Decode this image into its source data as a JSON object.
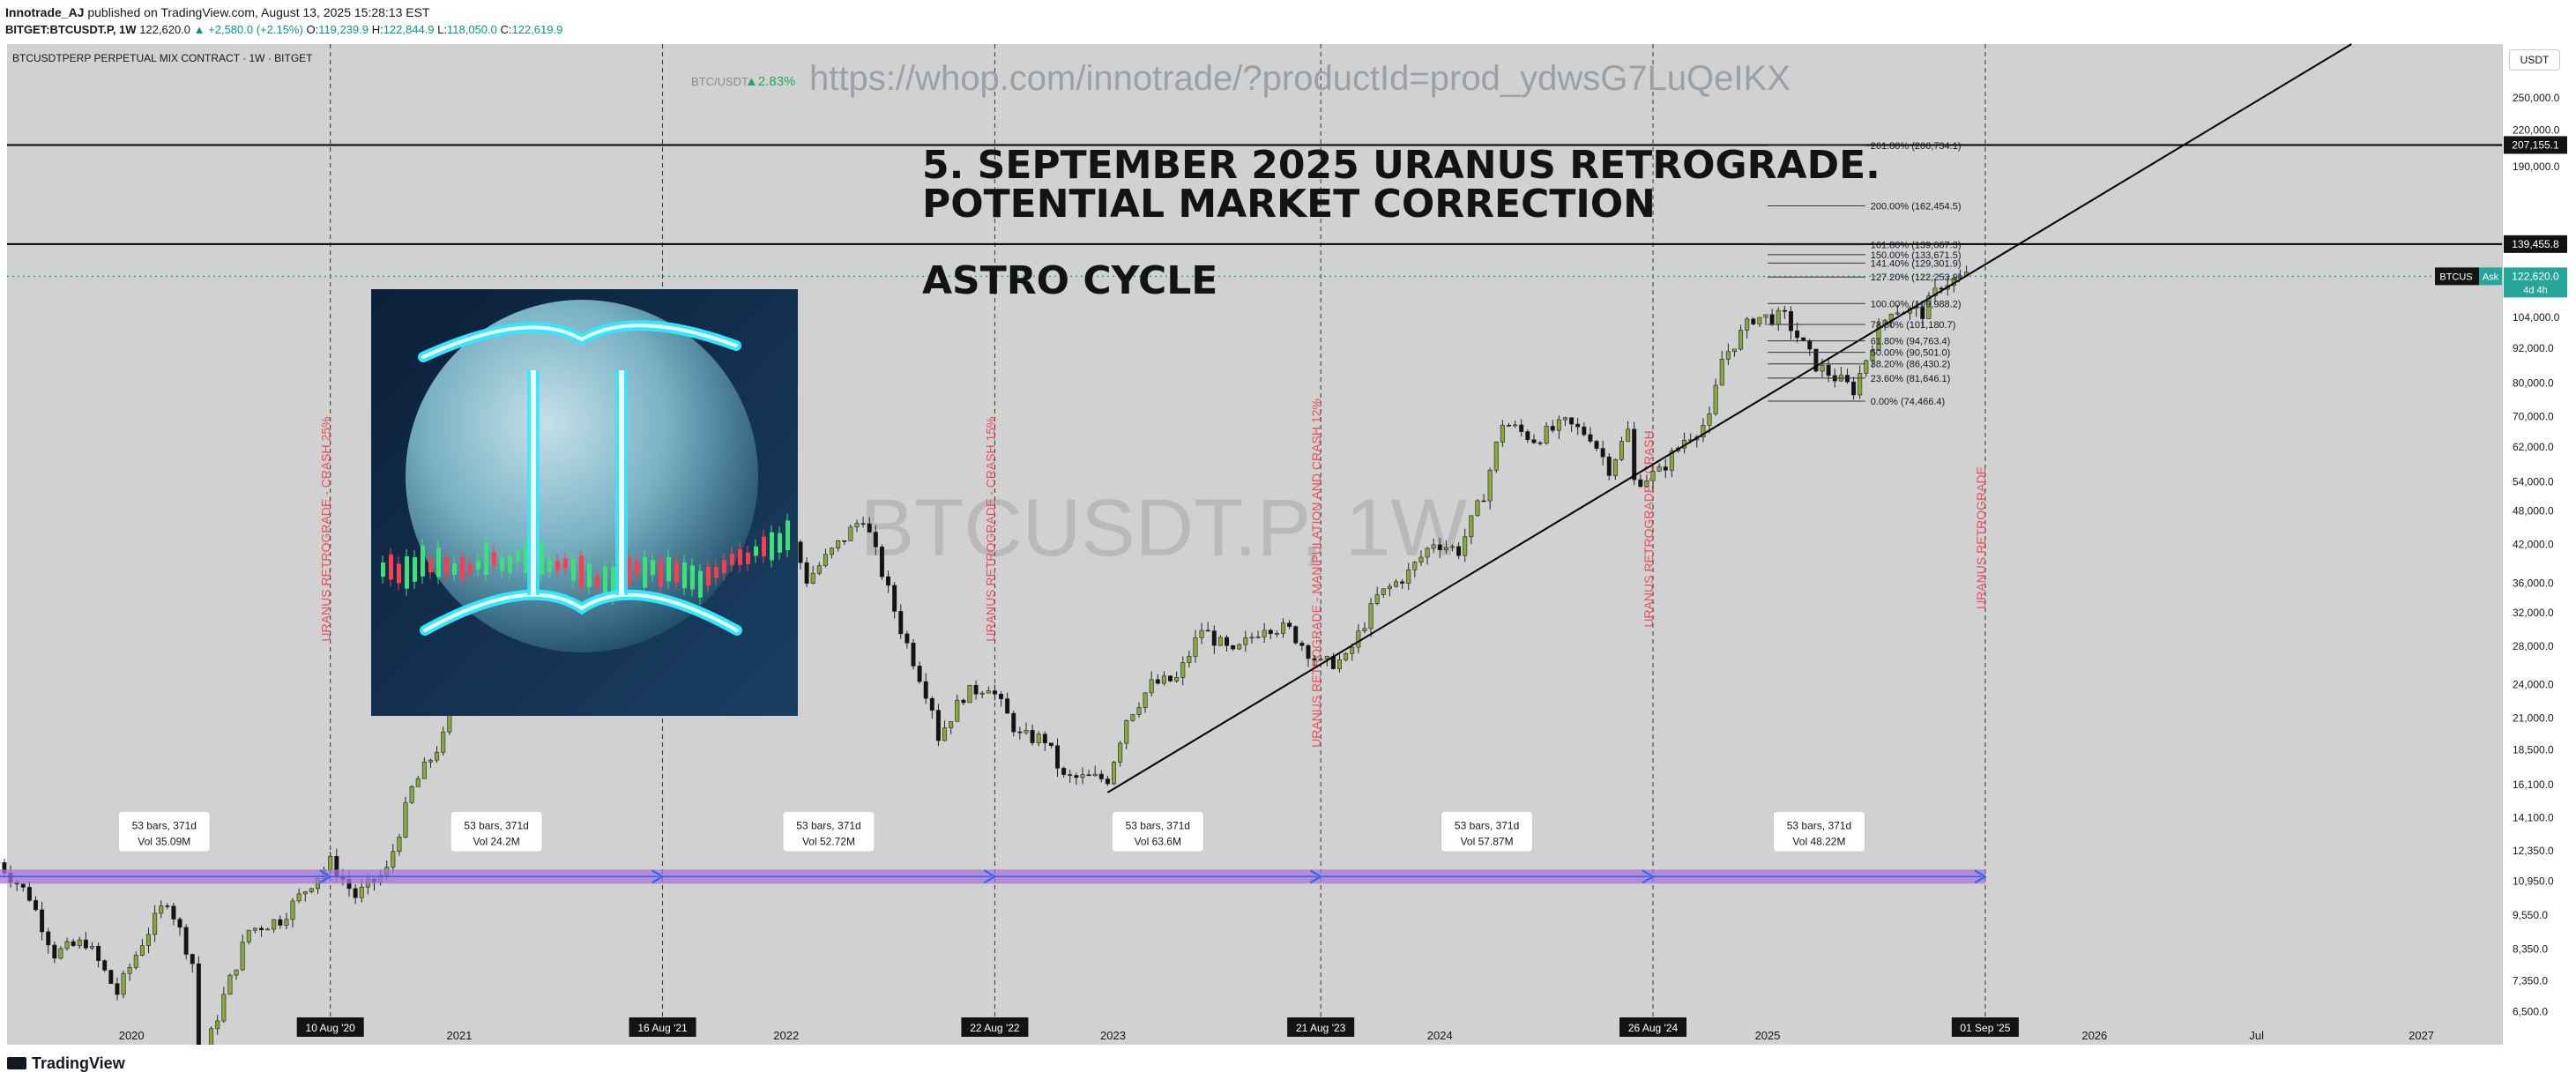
{
  "header": {
    "author": "Innotrade_AJ",
    "published": "published on TradingView.com, August 13, 2025 15:28:13 EST",
    "ticker": "BITGET:BTCUSDT.P, 1W",
    "last": "122,620.0",
    "change": "▲ +2,580.0 (+2.15%)",
    "o_label": "O:",
    "o": "119,239.9",
    "h_label": "H:",
    "h": "122,844.9",
    "l_label": "L:",
    "l": "118,050.0",
    "c_label": "C:",
    "c": "122,619.9"
  },
  "symbol_line": "BTCUSDTPERP PERPETUAL MIX CONTRACT · 1W · BITGET",
  "mini_ticker": {
    "name": "BTC/USDT",
    "change": "▲2.83%"
  },
  "url_text": "https://whop.com/innotrade/?productId=prod_ydwsG7LuQeIKX",
  "watermark": "BTCUSDT.P, 1W",
  "headline_1": "5. SEPTEMBER 2025 URANUS RETROGRADE.",
  "headline_2": "POTENTIAL MARKET CORRECTION",
  "headline_3": "ASTRO CYCLE",
  "currency_button": "USDT",
  "footer_brand": "TradingView",
  "colors": {
    "bg": "#d1d1d1",
    "up": "#89a83c",
    "down": "#131313",
    "cycle_label": "#e8505b",
    "range_bar": "#a874d6",
    "range_arrow": "#2962ff"
  },
  "chart_data": {
    "type": "candlestick",
    "scale": "log",
    "ylim": [
      5900,
      310000
    ],
    "xrange": [
      "2019-08-15",
      "2027-04-01"
    ],
    "y_ticks": [
      "250,000.0",
      "220,000.0",
      "190,000.0",
      "104,000.0",
      "92,000.0",
      "80,000.0",
      "70,000.0",
      "62,000.0",
      "54,000.0",
      "48,000.0",
      "42,000.0",
      "36,000.0",
      "32,000.0",
      "28,000.0",
      "24,000.0",
      "21,000.0",
      "18,500.0",
      "16,100.0",
      "14,100.0",
      "12,350.0",
      "10,950.0",
      "9,550.0",
      "8,350.0",
      "7,350.0",
      "6,500.0"
    ],
    "y_tick_values": [
      250000,
      220000,
      190000,
      104000,
      92000,
      80000,
      70000,
      62000,
      54000,
      48000,
      42000,
      36000,
      32000,
      28000,
      24000,
      21000,
      18500,
      16100,
      14100,
      12350,
      10950,
      9550,
      8350,
      7350,
      6500
    ],
    "x_ticks": [
      {
        "label": "2020",
        "date": "2020-01-01"
      },
      {
        "label": "2021",
        "date": "2021-01-01"
      },
      {
        "label": "2022",
        "date": "2022-01-01"
      },
      {
        "label": "2023",
        "date": "2023-01-01"
      },
      {
        "label": "2024",
        "date": "2024-01-01"
      },
      {
        "label": "2025",
        "date": "2025-01-01"
      },
      {
        "label": "2026",
        "date": "2026-01-01"
      },
      {
        "label": "Jul",
        "date": "2026-07-01"
      },
      {
        "label": "2027",
        "date": "2027-01-01"
      }
    ],
    "cycle_dates": [
      {
        "label": "10 Aug '20",
        "date": "2020-08-10",
        "note": "URANUS RETROGRADE - CRASH 25%"
      },
      {
        "label": "16 Aug '21",
        "date": "2021-08-16",
        "note": "URANUS RETROGRADE - CRASH 25%"
      },
      {
        "label": "22 Aug '22",
        "date": "2022-08-22",
        "note": "URANUS RETROGRADE - CRASH 15%"
      },
      {
        "label": "21 Aug '23",
        "date": "2023-08-21",
        "note": "URANUS RETROGRADE - MANIPULATION AND CRASH 12%"
      },
      {
        "label": "26 Aug '24",
        "date": "2024-08-26",
        "note": "URANUS RETROGRADE - CRASH"
      },
      {
        "label": "01 Sep '25",
        "date": "2025-09-01",
        "note": "URANUS RETROGRADE"
      }
    ],
    "ranges": [
      {
        "l1": "53 bars, 371d",
        "l2": "Vol 35.09M",
        "start": "2019-08-05",
        "end": "2020-08-10"
      },
      {
        "l1": "53 bars, 371d",
        "l2": "Vol 24.2M",
        "start": "2020-08-10",
        "end": "2021-08-16"
      },
      {
        "l1": "53 bars, 371d",
        "l2": "Vol 52.72M",
        "start": "2021-08-16",
        "end": "2022-08-22"
      },
      {
        "l1": "53 bars, 371d",
        "l2": "Vol 63.6M",
        "start": "2022-08-22",
        "end": "2023-08-21"
      },
      {
        "l1": "53 bars, 371d",
        "l2": "Vol 57.87M",
        "start": "2023-08-21",
        "end": "2024-08-26"
      },
      {
        "l1": "53 bars, 371d",
        "l2": "Vol 48.22M",
        "start": "2024-08-26",
        "end": "2025-09-01"
      }
    ],
    "horizontal_levels": [
      {
        "value": 207155.1,
        "label": "207,155.1"
      },
      {
        "value": 139455.8,
        "label": "139,455.8"
      }
    ],
    "current_price": {
      "value": 122620.0,
      "label": "122,620.0",
      "tag": "BTCUS",
      "ask": "Ask",
      "countdown": "4d 4h"
    },
    "fib_levels": [
      {
        "value": 206734.1,
        "label": "261.80% (206,734.1)"
      },
      {
        "value": 162454.5,
        "label": "200.00% (162,454.5)"
      },
      {
        "value": 139067.3,
        "label": "161.80% (139,067.3)"
      },
      {
        "value": 133671.5,
        "label": "150.00% (133,671.5)"
      },
      {
        "value": 129301.9,
        "label": "141.40% (129,301.9)"
      },
      {
        "value": 122253.9,
        "label": "127.20% (122,253.9)"
      },
      {
        "value": 109988.2,
        "label": "100.00% (109,988.2)"
      },
      {
        "value": 101180.7,
        "label": "78.60% (101,180.7)"
      },
      {
        "value": 94763.4,
        "label": "61.80% (94,763.4)"
      },
      {
        "value": 90501.0,
        "label": "50.00% (90,501.0)"
      },
      {
        "value": 86430.2,
        "label": "38.20% (86,430.2)"
      },
      {
        "value": 81646.1,
        "label": "23.60% (81,646.1)"
      },
      {
        "value": 74466.4,
        "label": "0.00% (74,466.4)"
      }
    ],
    "trendline": [
      {
        "date": "2022-12-26",
        "value": 15600
      },
      {
        "date": "2026-10-15",
        "value": 310000
      }
    ],
    "price_path": [
      [
        "2019-08-05",
        11800
      ],
      [
        "2019-09-09",
        10300
      ],
      [
        "2019-10-07",
        8200
      ],
      [
        "2019-11-11",
        8600
      ],
      [
        "2019-12-16",
        7000
      ],
      [
        "2020-01-13",
        8600
      ],
      [
        "2020-02-10",
        10200
      ],
      [
        "2020-03-09",
        7900
      ],
      [
        "2020-03-16",
        5100
      ],
      [
        "2020-04-13",
        6900
      ],
      [
        "2020-05-11",
        9000
      ],
      [
        "2020-06-15",
        9400
      ],
      [
        "2020-07-20",
        10900
      ],
      [
        "2020-08-10",
        11800
      ],
      [
        "2020-09-07",
        10300
      ],
      [
        "2020-10-12",
        11400
      ],
      [
        "2020-11-09",
        15800
      ],
      [
        "2020-12-14",
        19400
      ],
      [
        "2021-01-11",
        35000
      ],
      [
        "2021-02-15",
        48000
      ],
      [
        "2021-03-15",
        59000
      ],
      [
        "2021-04-12",
        63000
      ],
      [
        "2021-05-10",
        50000
      ],
      [
        "2021-05-24",
        35000
      ],
      [
        "2021-06-21",
        31000
      ],
      [
        "2021-07-19",
        31500
      ],
      [
        "2021-08-16",
        46000
      ],
      [
        "2021-09-20",
        43000
      ],
      [
        "2021-10-18",
        62000
      ],
      [
        "2021-11-08",
        67000
      ],
      [
        "2021-12-06",
        50000
      ],
      [
        "2022-01-10",
        42000
      ],
      [
        "2022-01-24",
        36500
      ],
      [
        "2022-03-28",
        47000
      ],
      [
        "2022-05-09",
        30000
      ],
      [
        "2022-06-13",
        22000
      ],
      [
        "2022-06-20",
        19500
      ],
      [
        "2022-07-18",
        23000
      ],
      [
        "2022-08-15",
        24000
      ],
      [
        "2022-09-19",
        19500
      ],
      [
        "2022-10-17",
        19300
      ],
      [
        "2022-11-07",
        16500
      ],
      [
        "2022-12-26",
        16500
      ],
      [
        "2023-01-16",
        21000
      ],
      [
        "2023-02-13",
        24000
      ],
      [
        "2023-03-13",
        24500
      ],
      [
        "2023-04-10",
        30000
      ],
      [
        "2023-05-15",
        27000
      ],
      [
        "2023-06-19",
        30500
      ],
      [
        "2023-07-17",
        29800
      ],
      [
        "2023-08-21",
        26000
      ],
      [
        "2023-09-18",
        26500
      ],
      [
        "2023-10-23",
        34000
      ],
      [
        "2023-11-27",
        37500
      ],
      [
        "2023-12-25",
        42500
      ],
      [
        "2024-01-22",
        41000
      ],
      [
        "2024-02-19",
        51500
      ],
      [
        "2024-03-11",
        68500
      ],
      [
        "2024-04-15",
        64000
      ],
      [
        "2024-05-20",
        68000
      ],
      [
        "2024-06-17",
        65000
      ],
      [
        "2024-07-08",
        57000
      ],
      [
        "2024-07-29",
        66000
      ],
      [
        "2024-08-05",
        54000
      ],
      [
        "2024-09-02",
        56000
      ],
      [
        "2024-09-30",
        64000
      ],
      [
        "2024-10-28",
        69000
      ],
      [
        "2024-11-11",
        88000
      ],
      [
        "2024-12-16",
        104000
      ],
      [
        "2025-01-20",
        104000
      ],
      [
        "2025-02-24",
        86000
      ],
      [
        "2025-04-07",
        78000
      ],
      [
        "2025-04-28",
        94000
      ],
      [
        "2025-05-19",
        108000
      ],
      [
        "2025-06-23",
        106000
      ],
      [
        "2025-07-14",
        119000
      ],
      [
        "2025-08-11",
        122620
      ]
    ]
  }
}
